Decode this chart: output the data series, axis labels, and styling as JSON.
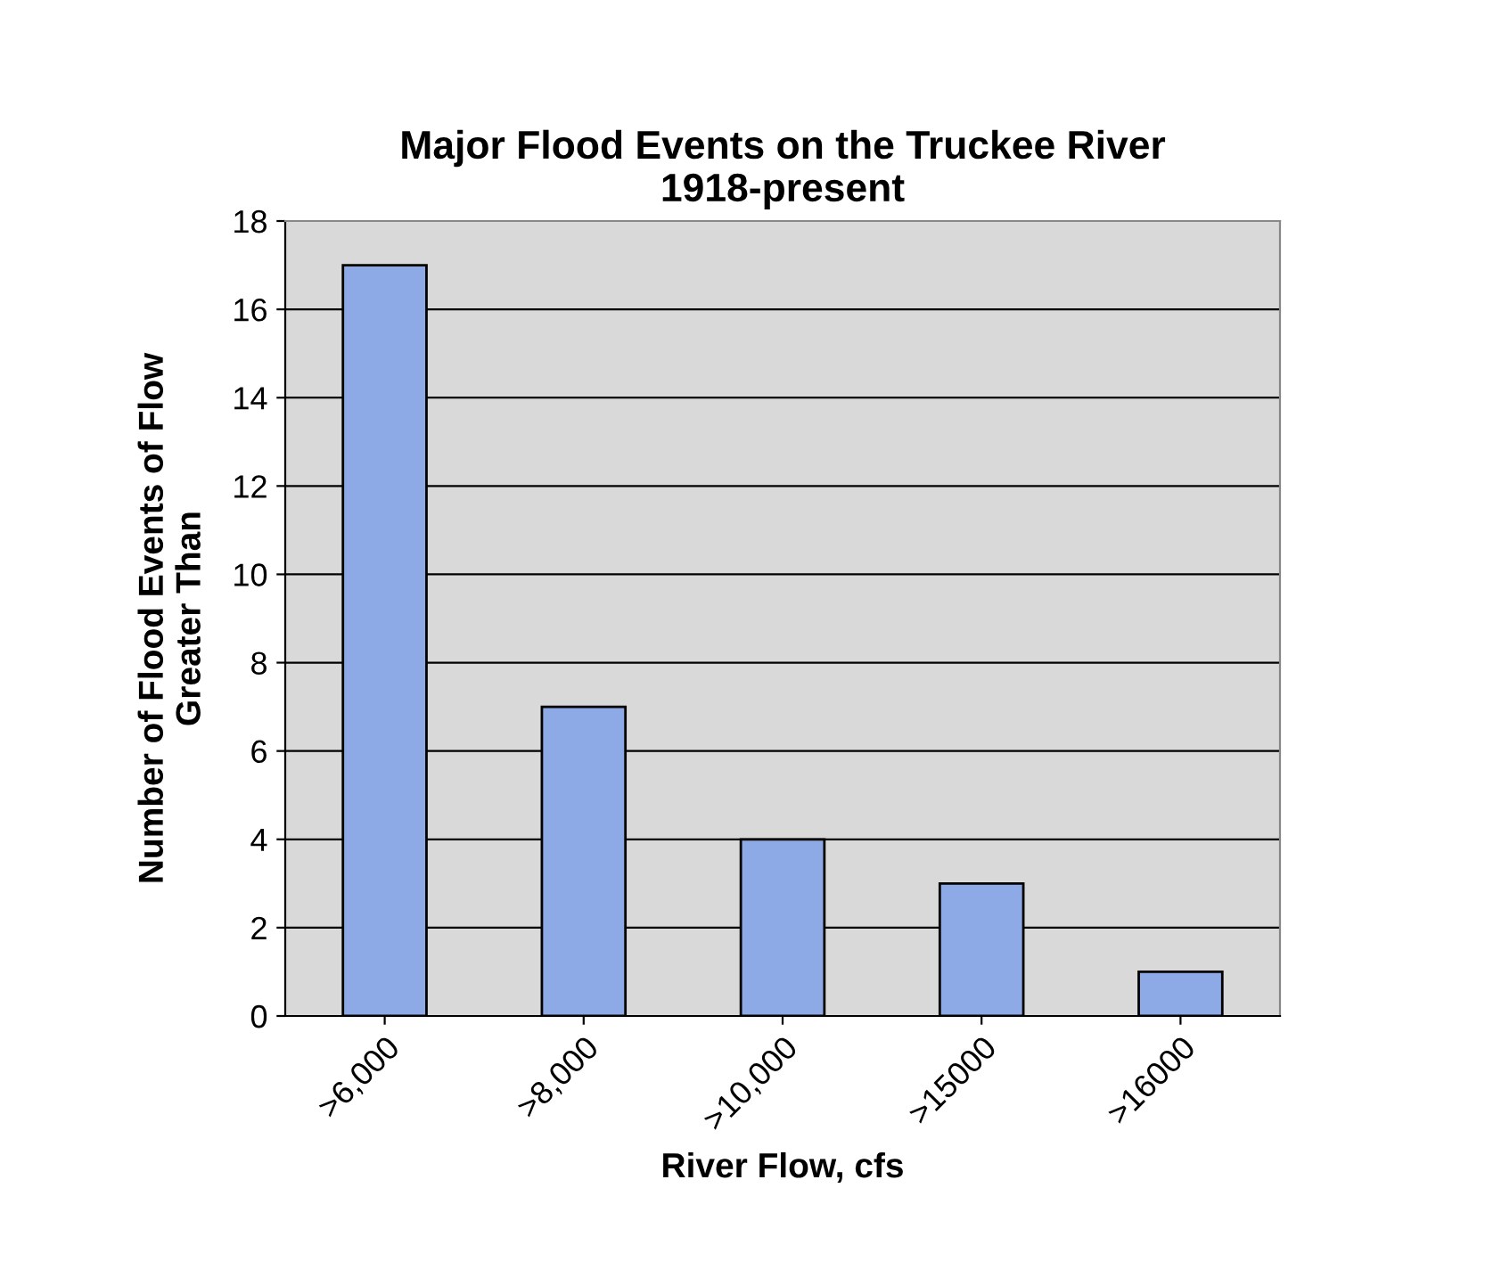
{
  "chart_data": {
    "type": "bar",
    "title": "Major Flood Events on the Truckee River\n1918-present",
    "xlabel": "River Flow, cfs",
    "ylabel": "Number of Flood Events of Flow\nGreater Than",
    "categories": [
      ">6,000",
      ">8,000",
      ">10,000",
      ">15000",
      ">16000"
    ],
    "values": [
      17,
      7,
      4,
      3,
      1
    ],
    "color": "#8eaae6",
    "ylim": [
      0,
      18
    ],
    "yticks": [
      0,
      2,
      4,
      6,
      8,
      10,
      12,
      14,
      16,
      18
    ],
    "grid": "y"
  }
}
